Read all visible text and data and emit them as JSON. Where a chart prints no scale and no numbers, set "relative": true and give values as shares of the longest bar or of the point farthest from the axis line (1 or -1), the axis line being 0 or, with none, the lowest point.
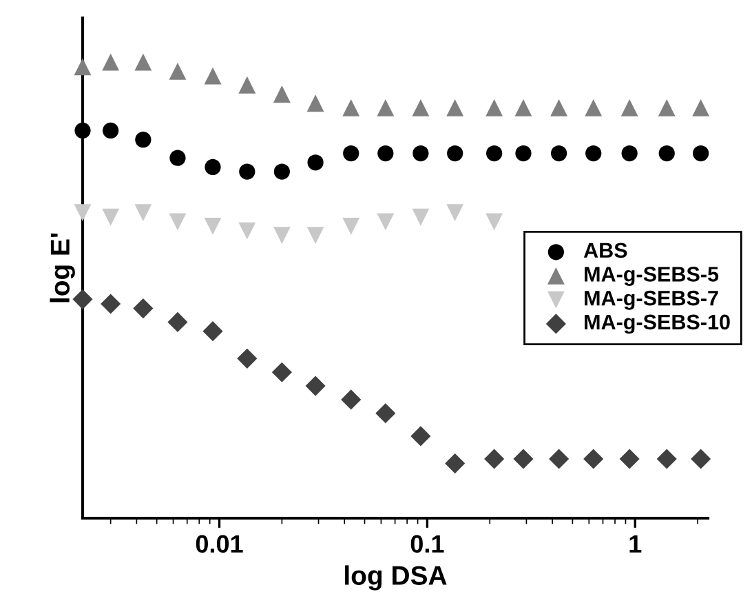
{
  "chart_data": {
    "type": "scatter",
    "xlabel": "log DSA",
    "ylabel": "log E'",
    "log": "x",
    "relative": true,
    "tick_labels": "x",
    "legend": "right",
    "x": [
      0.0022,
      0.003,
      0.0043,
      0.0063,
      0.0093,
      0.0136,
      0.02,
      0.029,
      0.043,
      0.063,
      0.093,
      0.136,
      0.21,
      0.29,
      0.43,
      0.63,
      0.94,
      1.42,
      2.07
    ],
    "xlim": [
      0.0022,
      2.24
    ],
    "xticks": [
      0.01,
      0.1,
      1
    ],
    "series": [
      {
        "name": "ABS",
        "color": "#000000",
        "marker": "circle",
        "values": [
          0.85,
          0.85,
          0.83,
          0.79,
          0.77,
          0.76,
          0.76,
          0.78,
          0.8,
          0.8,
          0.8,
          0.8,
          0.8,
          0.8,
          0.8,
          0.8,
          0.8,
          0.8,
          0.8
        ]
      },
      {
        "name": "MA-g-SEBS-5",
        "color": "#7f7f7f",
        "marker": "triangle",
        "values": [
          0.99,
          1,
          1,
          0.98,
          0.97,
          0.95,
          0.93,
          0.91,
          0.9,
          0.9,
          0.9,
          0.9,
          0.9,
          0.9,
          0.9,
          0.9,
          0.9,
          0.9,
          0.9
        ]
      },
      {
        "name": "MA-g-SEBS-7",
        "color": "#c8c8c8",
        "marker": "triangle_down",
        "values": [
          0.67,
          0.66,
          0.67,
          0.65,
          0.64,
          0.63,
          0.62,
          0.62,
          0.64,
          0.65,
          0.66,
          0.67,
          0.65,
          null,
          null,
          null,
          null,
          null,
          null
        ]
      },
      {
        "name": "MA-g-SEBS-10",
        "color": "#404040",
        "marker": "diamond",
        "values": [
          0.48,
          0.47,
          0.46,
          0.43,
          0.41,
          0.35,
          0.32,
          0.29,
          0.26,
          0.23,
          0.18,
          0.12,
          0.13,
          0.13,
          0.13,
          0.13,
          0.13,
          0.13,
          0.13
        ]
      }
    ]
  }
}
